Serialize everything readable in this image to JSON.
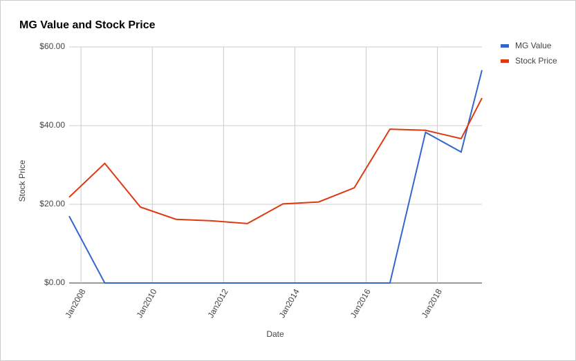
{
  "chart_data": {
    "type": "line",
    "title": "MG Value and Stock Price",
    "x_label": "Date",
    "y_label": "Stock Price",
    "x": [
      "2007-09",
      "2008-09",
      "2009-09",
      "2010-09",
      "2011-09",
      "2012-09",
      "2013-09",
      "2014-09",
      "2015-09",
      "2016-09",
      "2017-09",
      "2018-09",
      "2019-04"
    ],
    "series": [
      {
        "name": "MG Value",
        "color": "#3366cc",
        "values": [
          17.0,
          0,
          0,
          0,
          0,
          0,
          0,
          0,
          0,
          0,
          38.3,
          33.3,
          54.1
        ]
      },
      {
        "name": "Stock Price",
        "color": "#dc3912",
        "values": [
          21.8,
          30.4,
          19.3,
          16.2,
          15.8,
          15.1,
          20.1,
          20.6,
          24.2,
          39.1,
          38.8,
          36.7,
          47.0
        ]
      }
    ],
    "xlim": [
      "2007-09",
      "2019-04"
    ],
    "xticks": [
      {
        "value": "2008-01",
        "label": "Jan2008"
      },
      {
        "value": "2010-01",
        "label": "Jan2010"
      },
      {
        "value": "2012-01",
        "label": "Jan2012"
      },
      {
        "value": "2014-01",
        "label": "Jan2014"
      },
      {
        "value": "2016-01",
        "label": "Jan2016"
      },
      {
        "value": "2018-01",
        "label": "Jan2018"
      }
    ],
    "ylim": [
      0,
      60
    ],
    "yticks": [
      {
        "value": 0,
        "label": "$0.00"
      },
      {
        "value": 20,
        "label": "$20.00"
      },
      {
        "value": 40,
        "label": "$40.00"
      },
      {
        "value": 60,
        "label": "$60.00"
      }
    ],
    "grid": true,
    "legend": "right"
  }
}
